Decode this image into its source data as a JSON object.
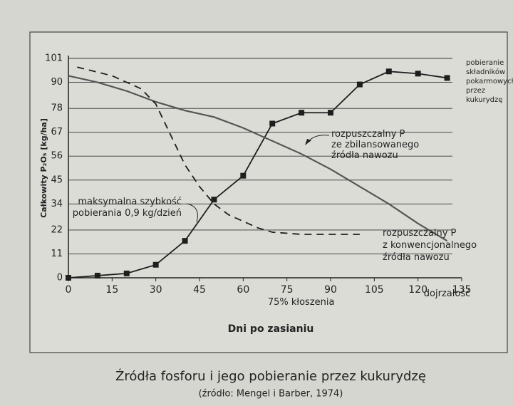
{
  "chart_data": {
    "type": "line",
    "title": "Źródła fosforu i jego pobieranie przez kukurydzę",
    "subtitle": "(źródło: Mengel i Barber, 1974)",
    "x_label": "Dni po zasianiu",
    "y_label": "Całkowity P₂O₅ [kg/ha]",
    "xlim": [
      0,
      135
    ],
    "xticks": [
      0,
      15,
      30,
      45,
      60,
      75,
      90,
      105,
      120,
      135
    ],
    "ylim": [
      0,
      101
    ],
    "yticks": [
      0,
      11,
      22,
      34,
      45,
      56,
      67,
      78,
      90,
      101
    ],
    "grid": true,
    "annotations": [
      {
        "text": [
          "maksymalna szybkość",
          "pobierania  0,9 kg/dzień"
        ],
        "x": 45,
        "y": 27
      },
      {
        "text": [
          "75% kłoszenia"
        ],
        "x": 75
      },
      {
        "text": [
          "dojrzałość"
        ],
        "x": 130
      }
    ],
    "series": [
      {
        "name": [
          "pobieranie",
          "składników",
          "pokarmowych",
          "przez",
          "kukurydzę"
        ],
        "color": "#1e1e1e",
        "style": "markers",
        "x": [
          0,
          10,
          20,
          30,
          40,
          50,
          60,
          70,
          80,
          90,
          100,
          110,
          120,
          130
        ],
        "values": [
          0,
          1,
          2,
          6,
          17,
          36,
          47,
          71,
          76,
          76,
          89,
          95,
          94,
          92
        ]
      },
      {
        "name": [
          "rozpuszczalny P",
          "ze zbilansowanego",
          "źródła nawozu"
        ],
        "color": "#555555",
        "style": "solid",
        "x": [
          0,
          10,
          20,
          30,
          40,
          50,
          60,
          70,
          80,
          90,
          100,
          110,
          120,
          130
        ],
        "values": [
          93,
          90,
          86,
          81,
          77,
          74,
          69,
          63,
          57,
          50,
          42,
          34,
          25,
          17
        ]
      },
      {
        "name": [
          "rozpuszczalny P",
          "z konwencjonalnego",
          "źródła nawozu"
        ],
        "color": "#1e1e1e",
        "style": "dashed",
        "x": [
          3,
          15,
          25,
          30,
          35,
          40,
          45,
          50,
          55,
          60,
          65,
          70,
          80,
          90,
          100
        ],
        "values": [
          97,
          93,
          87,
          80,
          66,
          52,
          42,
          34,
          29,
          26,
          23,
          21,
          20,
          20,
          20
        ]
      }
    ]
  }
}
